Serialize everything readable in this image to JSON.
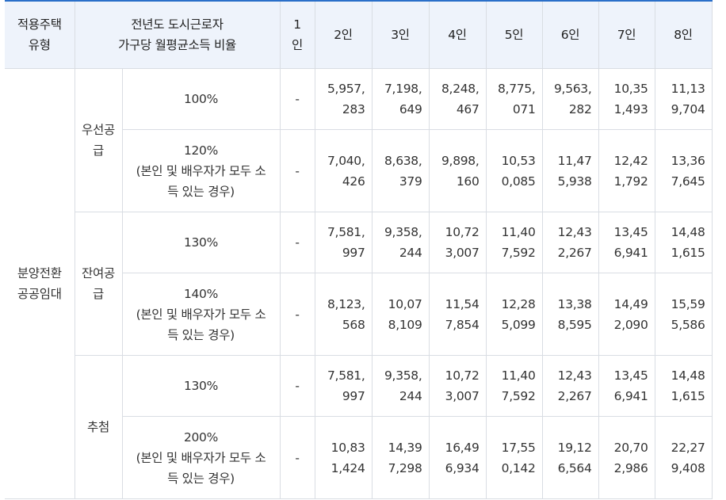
{
  "header": {
    "type": "적용주택\n유형",
    "ratio": "전년도 도시근로자\n가구당 월평균소득 비율",
    "persons": [
      "1\n인",
      "2인",
      "3인",
      "4인",
      "5인",
      "6인",
      "7인",
      "8인"
    ]
  },
  "body": {
    "housing_type": "분양전환\n공공임대",
    "groups": [
      {
        "label": "우선공\n급",
        "rows": [
          {
            "ratio": "100%",
            "values": [
              "-",
              "5,957,283",
              "7,198,649",
              "8,248,467",
              "8,775,071",
              "9,563,282",
              "10,351,493",
              "11,139,704"
            ]
          },
          {
            "ratio": "120%\n(본인 및 배우자가 모두 소\n득 있는 경우)",
            "values": [
              "-",
              "7,040,426",
              "8,638,379",
              "9,898,160",
              "10,530,085",
              "11,475,938",
              "12,421,792",
              "13,367,645"
            ]
          }
        ]
      },
      {
        "label": "잔여공\n급",
        "rows": [
          {
            "ratio": "130%",
            "values": [
              "-",
              "7,581,997",
              "9,358,244",
              "10,723,007",
              "11,407,592",
              "12,432,267",
              "13,456,941",
              "14,481,615"
            ]
          },
          {
            "ratio": "140%\n(본인 및 배우자가 모두 소\n득 있는 경우)",
            "values": [
              "-",
              "8,123,568",
              "10,078,109",
              "11,547,854",
              "12,285,099",
              "13,388,595",
              "14,492,090",
              "15,595,586"
            ]
          }
        ]
      },
      {
        "label": "추첨",
        "rows": [
          {
            "ratio": "130%",
            "values": [
              "-",
              "7,581,997",
              "9,358,244",
              "10,723,007",
              "11,407,592",
              "12,432,267",
              "13,456,941",
              "14,481,615"
            ]
          },
          {
            "ratio": "200%\n(본인 및 배우자가 모두 소\n득 있는 경우)",
            "values": [
              "-",
              "10,831,424",
              "14,397,298",
              "16,496,934",
              "17,550,142",
              "19,126,564",
              "20,702,986",
              "22,279,408"
            ]
          }
        ]
      }
    ]
  },
  "colors": {
    "header_bg": "#eef3fb",
    "top_border": "#2a6fc9",
    "grid": "#d9dde3"
  }
}
